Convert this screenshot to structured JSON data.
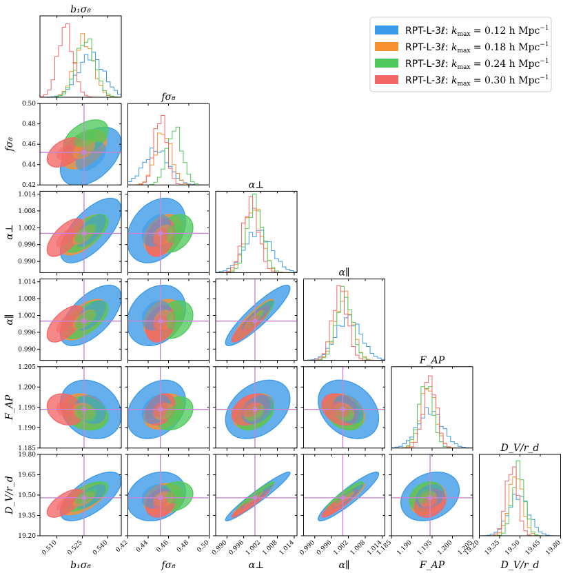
{
  "chart_data": {
    "type": "corner",
    "parameters": [
      {
        "name": "b1s8",
        "label": "b₁σ₈",
        "ticks": [
          "0.510",
          "0.525",
          "0.540"
        ],
        "tick_values": [
          0.51,
          0.525,
          0.54
        ],
        "range": [
          0.5,
          0.548
        ],
        "fiducial": 0.526
      },
      {
        "name": "fs8",
        "label": "fσ₈",
        "ticks": [
          "0.42",
          "0.44",
          "0.46",
          "0.48",
          "0.50"
        ],
        "tick_values": [
          0.42,
          0.44,
          0.46,
          0.48,
          0.5
        ],
        "range": [
          0.42,
          0.5
        ],
        "fiducial": 0.452
      },
      {
        "name": "aperp",
        "label": "α⊥",
        "ticks": [
          "0.990",
          "0.996",
          "1.002",
          "1.008",
          "1.014"
        ],
        "tick_values": [
          0.99,
          0.996,
          1.002,
          1.008,
          1.014
        ],
        "range": [
          0.986,
          1.015
        ],
        "fiducial": 1.0
      },
      {
        "name": "apar",
        "label": "α∥",
        "ticks": [
          "0.990",
          "0.996",
          "1.002",
          "1.008",
          "1.014"
        ],
        "tick_values": [
          0.99,
          0.996,
          1.002,
          1.008,
          1.014
        ],
        "range": [
          0.986,
          1.015
        ],
        "fiducial": 1.0
      },
      {
        "name": "FAP",
        "label": "F_AP",
        "ticks": [
          "1.185",
          "1.190",
          "1.195",
          "1.200",
          "1.205"
        ],
        "tick_values": [
          1.185,
          1.19,
          1.195,
          1.2,
          1.205
        ],
        "range": [
          1.185,
          1.205
        ],
        "fiducial": 1.1945
      },
      {
        "name": "DVrd",
        "label": "D_V/r_d",
        "ticks": [
          "19.20",
          "19.35",
          "19.50",
          "19.65",
          "19.80"
        ],
        "tick_values": [
          19.2,
          19.35,
          19.5,
          19.65,
          19.8
        ],
        "range": [
          19.2,
          19.8
        ],
        "fiducial": 19.48
      }
    ],
    "series": [
      {
        "name": "RPT-L-3ℓ: k_max = 0.12 h Mpc⁻¹",
        "color": "#3a99e8",
        "mean": [
          0.53,
          0.448,
          1.001,
          1.002,
          1.1945,
          19.49
        ],
        "sigma": [
          0.0075,
          0.012,
          0.0048,
          0.0045,
          0.003,
          0.075
        ]
      },
      {
        "name": "RPT-L-3ℓ: k_max = 0.18 h Mpc⁻¹",
        "color": "#f7922f",
        "mean": [
          0.526,
          0.455,
          0.9995,
          1.0005,
          1.194,
          19.47
        ],
        "sigma": [
          0.0055,
          0.008,
          0.003,
          0.003,
          0.0018,
          0.048
        ]
      },
      {
        "name": "RPT-L-3ℓ: k_max = 0.24 h Mpc⁻¹",
        "color": "#4fc95b",
        "mean": [
          0.527,
          0.466,
          1.0,
          1.0005,
          1.1935,
          19.49
        ],
        "sigma": [
          0.0055,
          0.0075,
          0.0028,
          0.0028,
          0.0017,
          0.045
        ]
      },
      {
        "name": "RPT-L-3ℓ: k_max = 0.30 h Mpc⁻¹",
        "color": "#f46767",
        "mean": [
          0.515,
          0.452,
          0.9985,
          0.999,
          1.1945,
          19.44
        ],
        "sigma": [
          0.0045,
          0.006,
          0.0028,
          0.0027,
          0.0016,
          0.043
        ]
      }
    ],
    "correlation": [
      [
        1.0,
        0.45,
        0.65,
        0.6,
        -0.2,
        0.65
      ],
      [
        0.45,
        1.0,
        0.3,
        0.25,
        0.3,
        0.2
      ],
      [
        0.65,
        0.3,
        1.0,
        0.9,
        0.35,
        0.96
      ],
      [
        0.6,
        0.25,
        0.9,
        1.0,
        -0.3,
        0.92
      ],
      [
        -0.2,
        0.3,
        0.35,
        -0.3,
        1.0,
        0.25
      ],
      [
        0.65,
        0.2,
        0.96,
        0.92,
        0.25,
        1.0
      ]
    ],
    "legend_position": "top-right",
    "fiducial_line_color": "#c886d6"
  },
  "legend": [
    {
      "prefix": "RPT-L-3ℓ: ",
      "k": "k",
      "sub": "max",
      "rest": " = 0.12 h Mpc",
      "sup": "−1"
    },
    {
      "prefix": "RPT-L-3ℓ: ",
      "k": "k",
      "sub": "max",
      "rest": " = 0.18 h Mpc",
      "sup": "−1"
    },
    {
      "prefix": "RPT-L-3ℓ: ",
      "k": "k",
      "sub": "max",
      "rest": " = 0.24 h Mpc",
      "sup": "−1"
    },
    {
      "prefix": "RPT-L-3ℓ: ",
      "k": "k",
      "sub": "max",
      "rest": " = 0.30 h Mpc",
      "sup": "−1"
    }
  ]
}
